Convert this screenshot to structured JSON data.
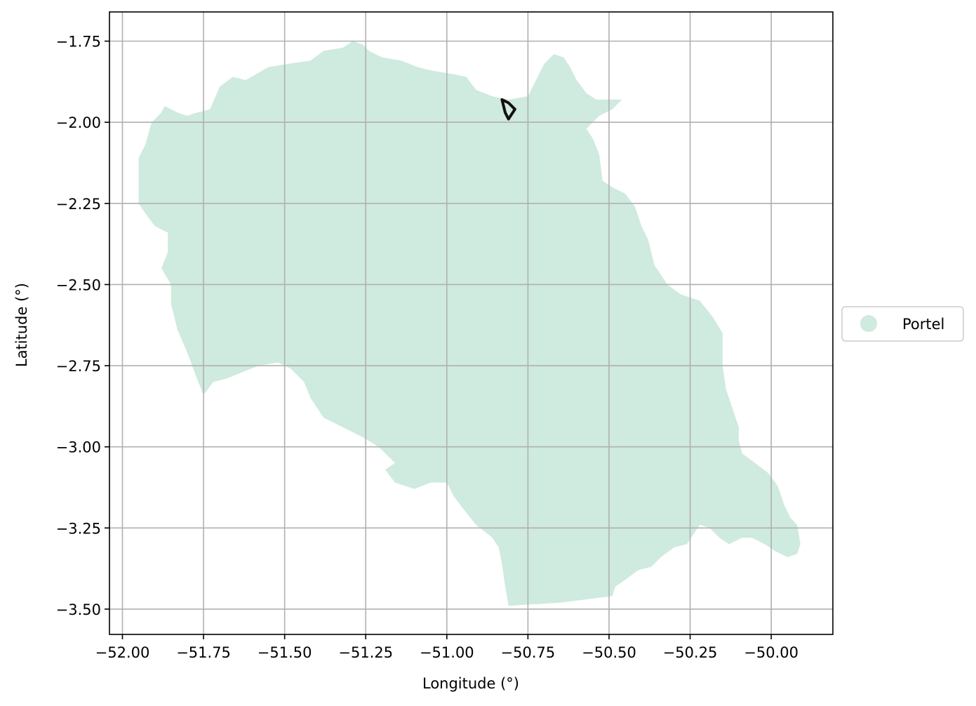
{
  "chart_data": {
    "type": "map",
    "xlabel": "Longitude (°)",
    "ylabel": "Latitude (°)",
    "xlim": [
      -52.04,
      -49.81
    ],
    "ylim": [
      -3.578,
      -1.66
    ],
    "x_ticks": [
      -52.0,
      -51.75,
      -51.5,
      -51.25,
      -51.0,
      -50.75,
      -50.5,
      -50.25,
      -50.0
    ],
    "x_tick_labels": [
      "−52.00",
      "−51.75",
      "−51.50",
      "−51.25",
      "−51.00",
      "−50.75",
      "−50.50",
      "−50.25",
      "−50.00"
    ],
    "y_ticks": [
      -1.75,
      -2.0,
      -2.25,
      -2.5,
      -2.75,
      -3.0,
      -3.25,
      -3.5
    ],
    "y_tick_labels": [
      "−1.75",
      "−2.00",
      "−2.25",
      "−2.50",
      "−2.75",
      "−3.00",
      "−3.25",
      "−3.50"
    ],
    "grid": true,
    "legend_position": "center-right-outside",
    "colors": {
      "region_fill": "#cfeade",
      "grid": "#b0b0b0",
      "outline": "#111111"
    },
    "regions": [
      {
        "name": "Portel",
        "coordinates": [
          [
            -51.95,
            -2.11
          ],
          [
            -51.93,
            -2.07
          ],
          [
            -51.91,
            -2.0
          ],
          [
            -51.88,
            -1.97
          ],
          [
            -51.87,
            -1.95
          ],
          [
            -51.83,
            -1.97
          ],
          [
            -51.8,
            -1.98
          ],
          [
            -51.77,
            -1.97
          ],
          [
            -51.73,
            -1.96
          ],
          [
            -51.7,
            -1.89
          ],
          [
            -51.66,
            -1.86
          ],
          [
            -51.62,
            -1.87
          ],
          [
            -51.55,
            -1.83
          ],
          [
            -51.49,
            -1.82
          ],
          [
            -51.42,
            -1.81
          ],
          [
            -51.38,
            -1.78
          ],
          [
            -51.32,
            -1.77
          ],
          [
            -51.29,
            -1.75
          ],
          [
            -51.26,
            -1.76
          ],
          [
            -51.24,
            -1.78
          ],
          [
            -51.2,
            -1.8
          ],
          [
            -51.14,
            -1.81
          ],
          [
            -51.09,
            -1.83
          ],
          [
            -51.05,
            -1.84
          ],
          [
            -50.99,
            -1.85
          ],
          [
            -50.94,
            -1.86
          ],
          [
            -50.91,
            -1.9
          ],
          [
            -50.86,
            -1.92
          ],
          [
            -50.81,
            -1.93
          ],
          [
            -50.75,
            -1.92
          ],
          [
            -50.72,
            -1.86
          ],
          [
            -50.7,
            -1.82
          ],
          [
            -50.67,
            -1.79
          ],
          [
            -50.64,
            -1.8
          ],
          [
            -50.62,
            -1.83
          ],
          [
            -50.6,
            -1.87
          ],
          [
            -50.57,
            -1.91
          ],
          [
            -50.54,
            -1.93
          ],
          [
            -50.51,
            -1.93
          ],
          [
            -50.46,
            -1.93
          ],
          [
            -50.49,
            -1.96
          ],
          [
            -50.53,
            -1.98
          ],
          [
            -50.57,
            -2.02
          ],
          [
            -50.55,
            -2.05
          ],
          [
            -50.53,
            -2.1
          ],
          [
            -50.52,
            -2.18
          ],
          [
            -50.49,
            -2.2
          ],
          [
            -50.45,
            -2.22
          ],
          [
            -50.42,
            -2.26
          ],
          [
            -50.4,
            -2.32
          ],
          [
            -50.38,
            -2.36
          ],
          [
            -50.36,
            -2.44
          ],
          [
            -50.32,
            -2.5
          ],
          [
            -50.28,
            -2.53
          ],
          [
            -50.22,
            -2.55
          ],
          [
            -50.18,
            -2.6
          ],
          [
            -50.15,
            -2.65
          ],
          [
            -50.15,
            -2.68
          ],
          [
            -50.15,
            -2.75
          ],
          [
            -50.14,
            -2.82
          ],
          [
            -50.12,
            -2.88
          ],
          [
            -50.1,
            -2.94
          ],
          [
            -50.1,
            -2.98
          ],
          [
            -50.09,
            -3.02
          ],
          [
            -50.05,
            -3.05
          ],
          [
            -50.01,
            -3.08
          ],
          [
            -49.98,
            -3.12
          ],
          [
            -49.96,
            -3.18
          ],
          [
            -49.94,
            -3.22
          ],
          [
            -49.92,
            -3.24
          ],
          [
            -49.91,
            -3.3
          ],
          [
            -49.92,
            -3.33
          ],
          [
            -49.95,
            -3.34
          ],
          [
            -49.99,
            -3.32
          ],
          [
            -50.02,
            -3.3
          ],
          [
            -50.06,
            -3.28
          ],
          [
            -50.09,
            -3.28
          ],
          [
            -50.13,
            -3.3
          ],
          [
            -50.16,
            -3.28
          ],
          [
            -50.19,
            -3.25
          ],
          [
            -50.22,
            -3.24
          ],
          [
            -50.26,
            -3.3
          ],
          [
            -50.3,
            -3.31
          ],
          [
            -50.34,
            -3.34
          ],
          [
            -50.37,
            -3.37
          ],
          [
            -50.41,
            -3.38
          ],
          [
            -50.45,
            -3.41
          ],
          [
            -50.48,
            -3.43
          ],
          [
            -50.49,
            -3.46
          ],
          [
            -50.65,
            -3.48
          ],
          [
            -50.81,
            -3.49
          ],
          [
            -50.82,
            -3.43
          ],
          [
            -50.83,
            -3.36
          ],
          [
            -50.84,
            -3.31
          ],
          [
            -50.86,
            -3.28
          ],
          [
            -50.91,
            -3.24
          ],
          [
            -50.95,
            -3.19
          ],
          [
            -50.98,
            -3.15
          ],
          [
            -51.0,
            -3.11
          ],
          [
            -51.05,
            -3.11
          ],
          [
            -51.1,
            -3.13
          ],
          [
            -51.16,
            -3.11
          ],
          [
            -51.19,
            -3.07
          ],
          [
            -51.16,
            -3.05
          ],
          [
            -51.21,
            -3.0
          ],
          [
            -51.26,
            -2.97
          ],
          [
            -51.32,
            -2.94
          ],
          [
            -51.38,
            -2.91
          ],
          [
            -51.42,
            -2.85
          ],
          [
            -51.44,
            -2.8
          ],
          [
            -51.48,
            -2.76
          ],
          [
            -51.52,
            -2.74
          ],
          [
            -51.58,
            -2.75
          ],
          [
            -51.63,
            -2.77
          ],
          [
            -51.68,
            -2.79
          ],
          [
            -51.72,
            -2.8
          ],
          [
            -51.75,
            -2.84
          ],
          [
            -51.77,
            -2.79
          ],
          [
            -51.8,
            -2.71
          ],
          [
            -51.83,
            -2.64
          ],
          [
            -51.85,
            -2.56
          ],
          [
            -51.85,
            -2.5
          ],
          [
            -51.88,
            -2.45
          ],
          [
            -51.86,
            -2.4
          ],
          [
            -51.86,
            -2.34
          ],
          [
            -51.9,
            -2.32
          ],
          [
            -51.93,
            -2.28
          ],
          [
            -51.95,
            -2.25
          ]
        ]
      }
    ],
    "outlined_feature": [
      [
        -50.83,
        -1.93
      ],
      [
        -50.82,
        -1.97
      ],
      [
        -50.81,
        -1.99
      ],
      [
        -50.79,
        -1.96
      ],
      [
        -50.81,
        -1.94
      ],
      [
        -50.83,
        -1.93
      ]
    ],
    "legend": [
      {
        "label": "Portel",
        "color": "#cfeade"
      }
    ]
  }
}
